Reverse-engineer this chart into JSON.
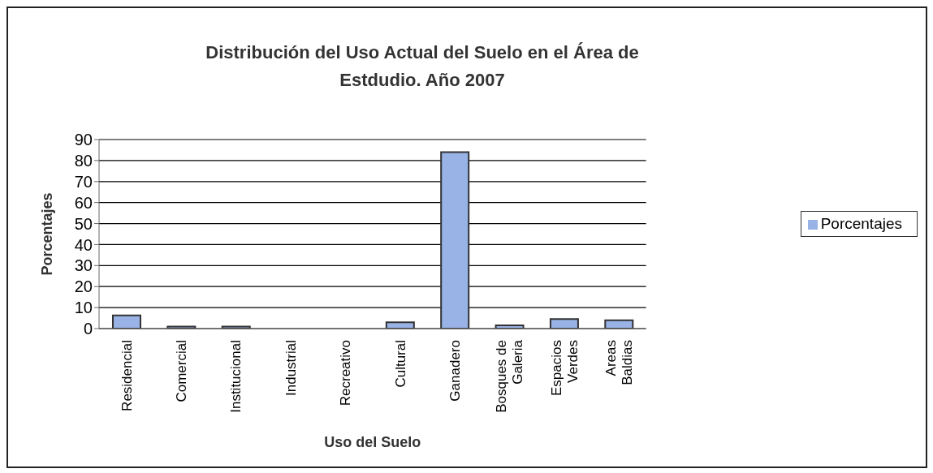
{
  "chart_data": {
    "type": "bar",
    "title": "Distribución del Uso Actual del Suelo en el Área de Estdudio. Año 2007",
    "xlabel": "Uso del Suelo",
    "ylabel": "Porcentajes",
    "categories": [
      "Residencial",
      "Comercial",
      "Institucional",
      "Industrial",
      "Recreativo",
      "Cultural",
      "Ganadero",
      "Bosques de Galeria",
      "Espacios Verdes",
      "Areas Baldias"
    ],
    "series": [
      {
        "name": "Porcentajes",
        "color": "#99b3e6",
        "values": [
          6.3,
          1,
          1,
          0,
          0,
          3,
          84,
          1.5,
          4.5,
          4
        ]
      }
    ],
    "ylim": [
      0,
      90
    ],
    "yticks": [
      0,
      10,
      20,
      30,
      40,
      50,
      60,
      70,
      80,
      90
    ],
    "grid": "y",
    "legend": "right"
  }
}
